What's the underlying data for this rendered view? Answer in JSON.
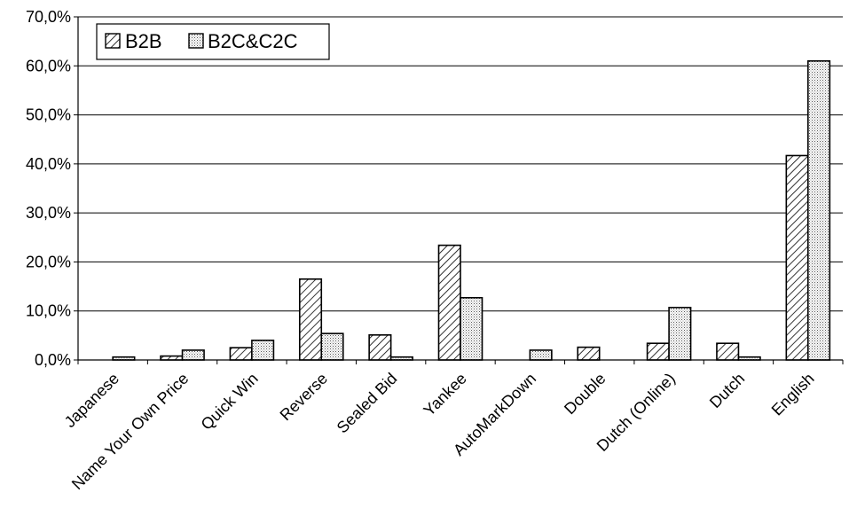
{
  "chart_data": {
    "type": "bar",
    "title": "",
    "xlabel": "",
    "ylabel": "",
    "ylim": [
      0,
      70
    ],
    "y_ticks": [
      "0,0%",
      "10,0%",
      "20,0%",
      "30,0%",
      "40,0%",
      "50,0%",
      "60,0%",
      "70,0%"
    ],
    "y_unit": "%",
    "grid": "horizontal",
    "legend_position": "top-left",
    "categories": [
      "Japanese",
      "Name Your Own Price",
      "Quick Win",
      "Reverse",
      "Sealed Bid",
      "Yankee",
      "AutoMarkDown",
      "Double",
      "Dutch (Online)",
      "Dutch",
      "English"
    ],
    "series": [
      {
        "name": "B2B",
        "pattern": "diagonal-hatch",
        "values": [
          0.0,
          0.8,
          2.5,
          16.5,
          5.1,
          23.4,
          0.0,
          2.6,
          3.4,
          3.4,
          41.7
        ]
      },
      {
        "name": "B2C&C2C",
        "pattern": "dotted",
        "values": [
          0.6,
          2.0,
          4.0,
          5.4,
          0.6,
          12.7,
          2.0,
          0.0,
          10.7,
          0.6,
          61.0
        ]
      }
    ]
  }
}
